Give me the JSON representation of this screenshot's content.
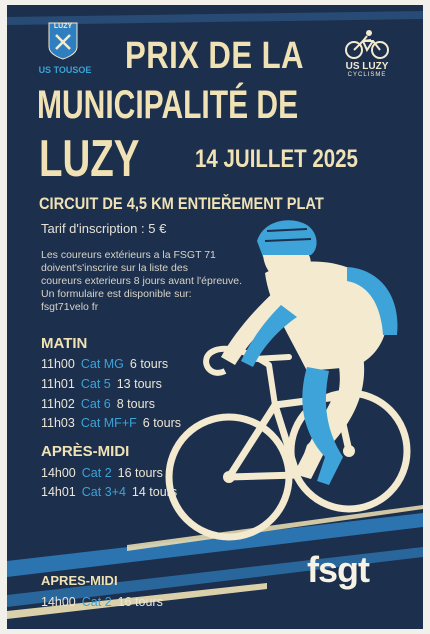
{
  "club_left": {
    "crest_text": "LUZY",
    "name": "US TOUSOE"
  },
  "club_right": {
    "name": "US LUZY",
    "sub": "CYCLISME"
  },
  "title": {
    "line1": "PRIX DE LA",
    "line2": "MUNICIPALITÉ DE",
    "line3": "LUZY"
  },
  "date": "14 JUILLET 2025",
  "circuit": "CIRCUIT DE 4,5 KM ENTIEŘEMENT PLAT",
  "tarif": "Tarif d'inscription : 5 €",
  "note_lines": [
    "Les coureurs extérieurs a la FSGT 71",
    "doivent's'inscrire sur la liste des",
    "coureurs exterieurs 8 jours avant l'épreuve.",
    "Un formulaire est disponible sur:",
    "fsgt71velo fr"
  ],
  "matin": {
    "heading": "MATIN",
    "races": [
      {
        "time": "11h00",
        "cat": "Cat MG",
        "tours": "6 tours"
      },
      {
        "time": "11h01",
        "cat": "Cat 5",
        "tours": "13 tours"
      },
      {
        "time": "11h02",
        "cat": "Cat 6",
        "tours": "8 tours"
      },
      {
        "time": "11h03",
        "cat": "Cat MF+F",
        "tours": "6 tours"
      }
    ]
  },
  "apres_midi": {
    "heading": "APRÈS-MIDI",
    "races": [
      {
        "time": "14h00",
        "cat": "Cat 2",
        "tours": "16 tours"
      },
      {
        "time": "14h01",
        "cat": "Cat 3+4",
        "tours": "14 tours"
      }
    ]
  },
  "apres_midi_2": {
    "heading": "APRES-MIDI",
    "races": [
      {
        "time": "14h00",
        "cat": "Cat 2",
        "tours": "16 tours"
      }
    ]
  },
  "logo": "fsgt",
  "colors": {
    "background": "#1c2f4c",
    "title": "#f0e2b4",
    "accent": "#3da3d9",
    "cream": "#f3ead0"
  }
}
